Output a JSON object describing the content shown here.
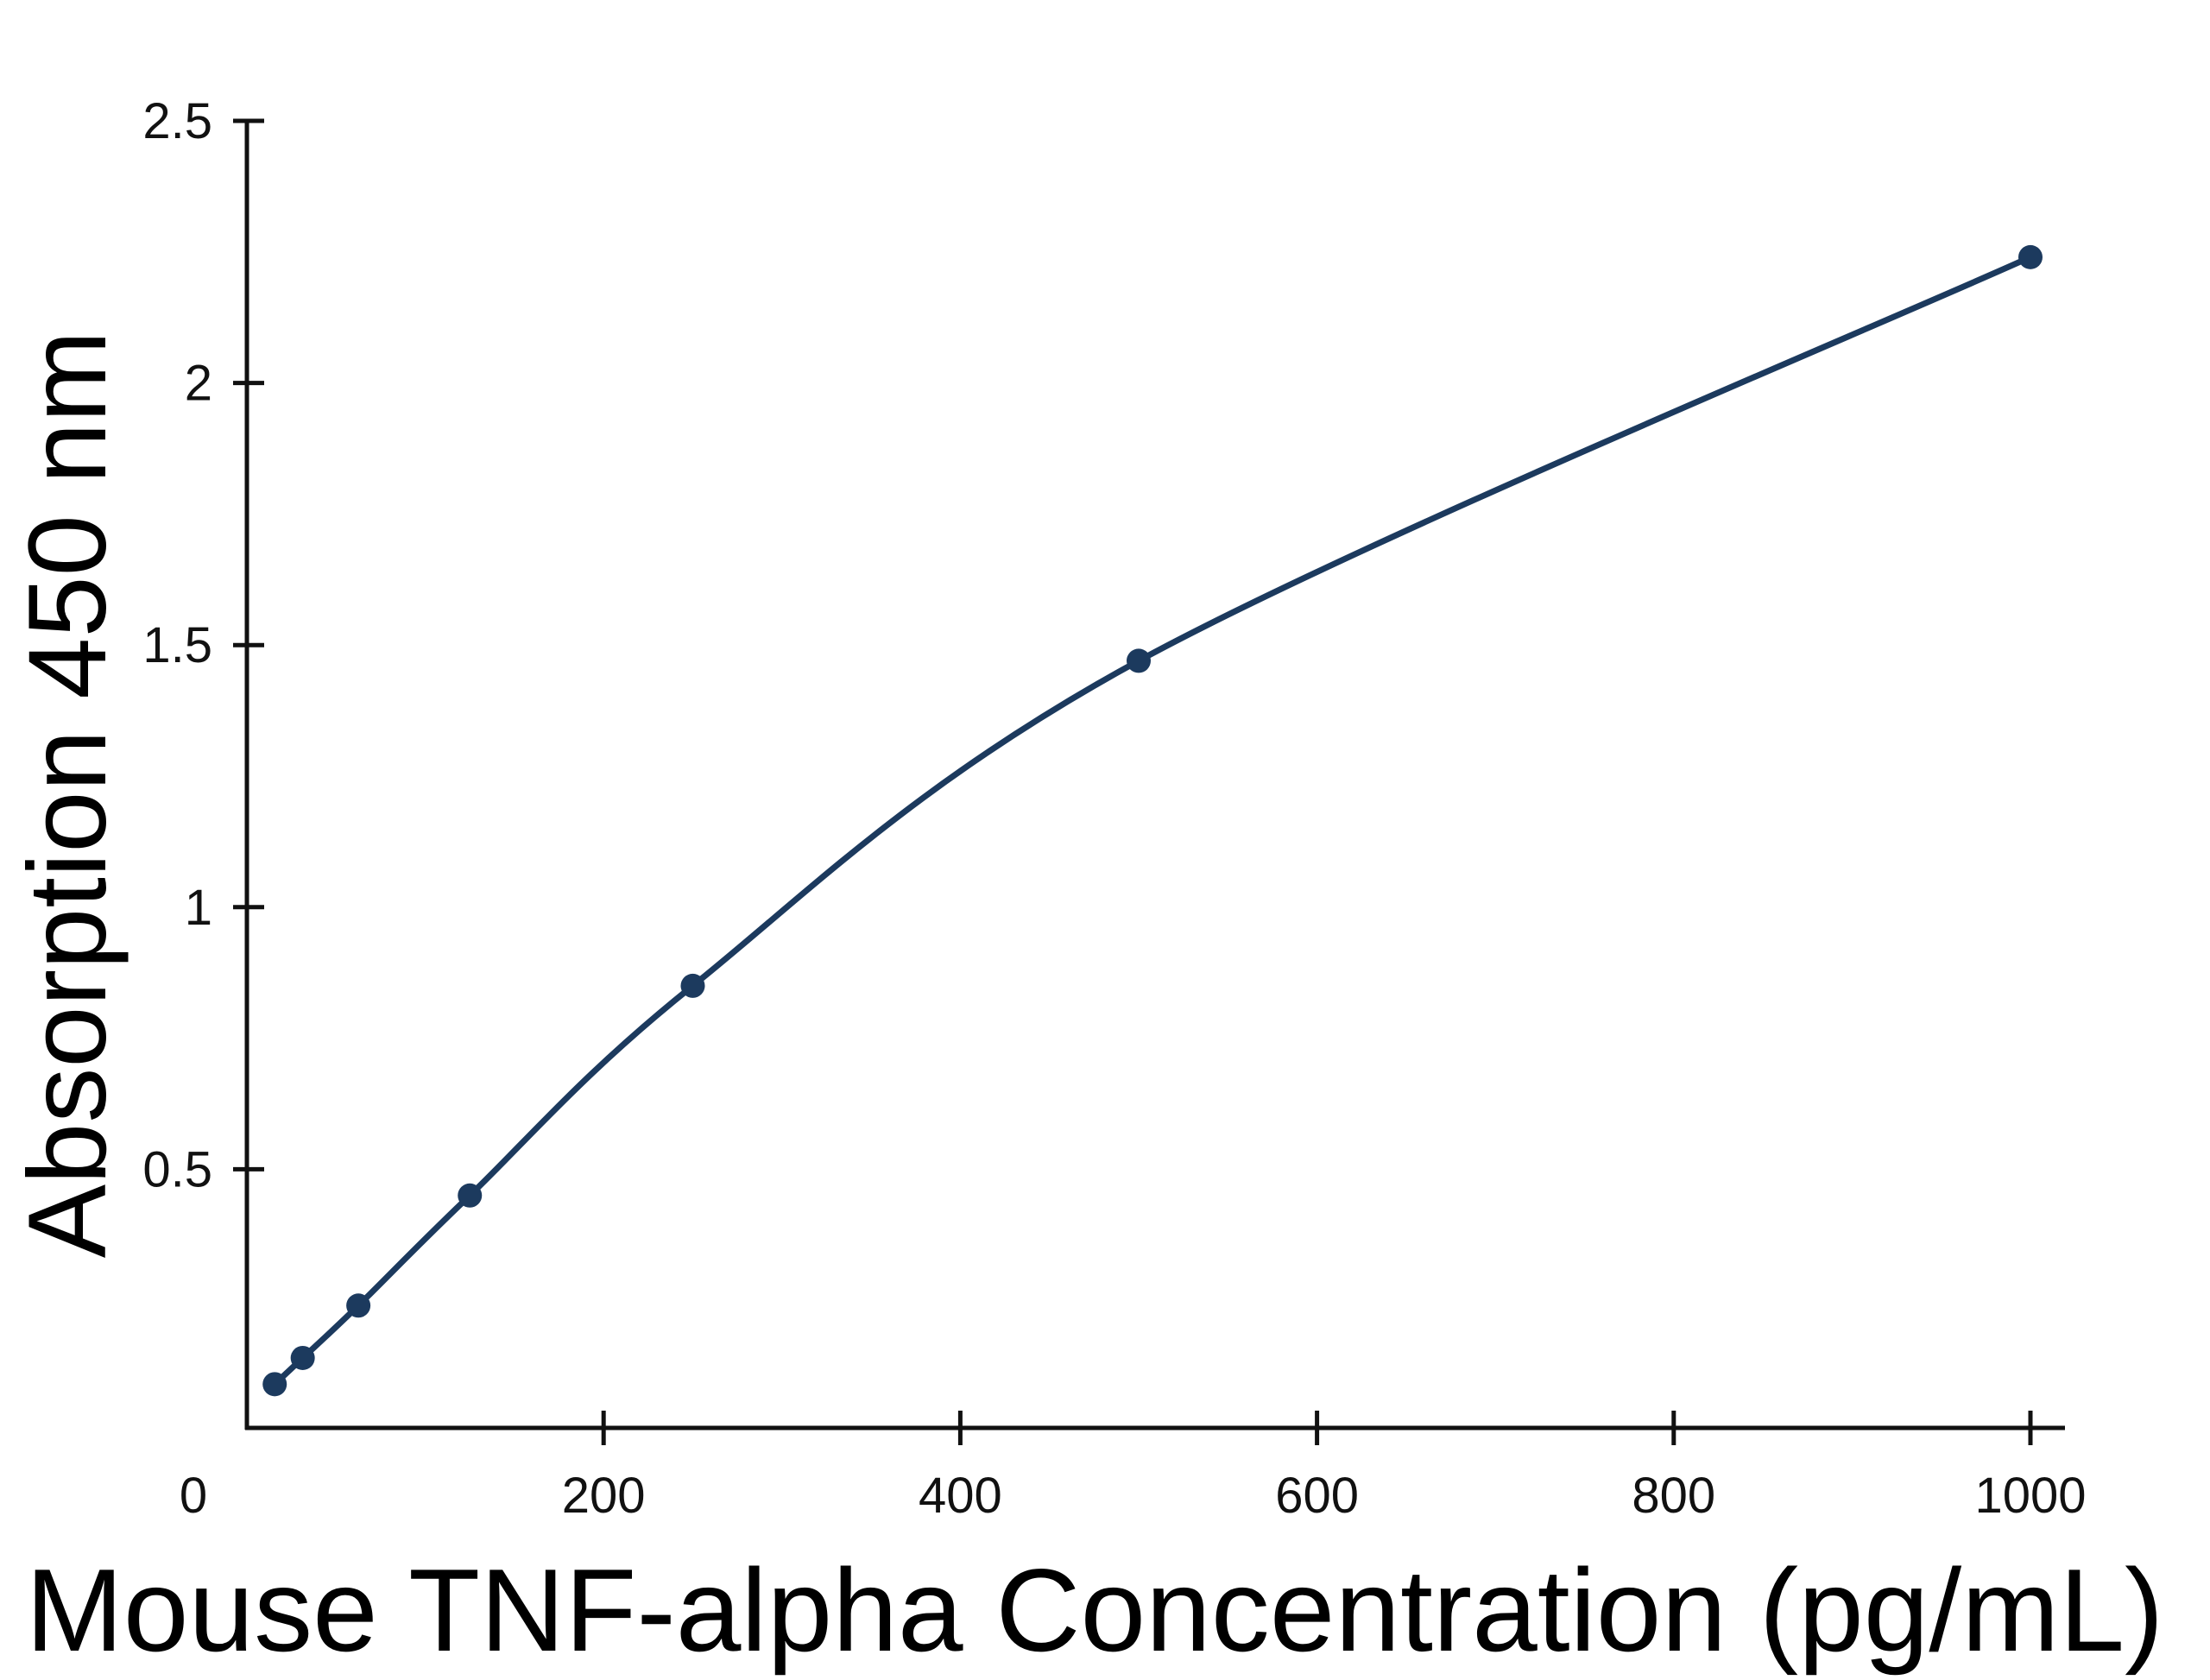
{
  "chart_data": {
    "type": "line",
    "title": "",
    "xlabel": "Mouse TNF-alpha Concentration (pg/mL)",
    "ylabel": "Absorption 450 nm",
    "xlim": [
      0,
      1000
    ],
    "ylim": [
      0,
      2.5
    ],
    "x_ticks": [
      "0",
      "200",
      "400",
      "600",
      "800",
      "1000"
    ],
    "y_ticks": [
      "0.5",
      "1",
      "1.5",
      "2",
      "2.5"
    ],
    "grid": false,
    "legend": "none",
    "series": [
      {
        "color": "#1c3a5e",
        "x": [
          15.6,
          31.3,
          62.5,
          125,
          250,
          500,
          1000
        ],
        "y": [
          0.09,
          0.14,
          0.24,
          0.45,
          0.85,
          1.47,
          2.24
        ]
      }
    ]
  }
}
